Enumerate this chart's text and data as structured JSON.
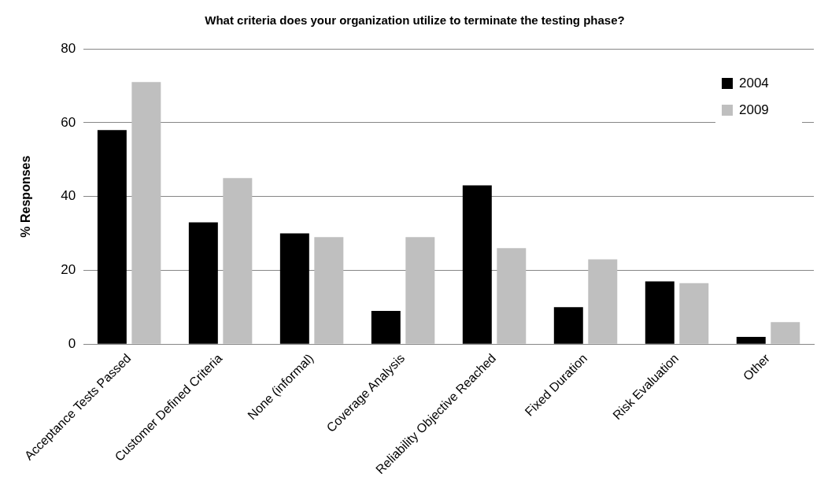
{
  "chart_data": {
    "type": "bar",
    "title": "What criteria does your organization utilize to terminate the testing phase?",
    "ylabel": "% Responses",
    "categories": [
      "Acceptance Tests Passed",
      "Customer Defined Criteria",
      "None (informal)",
      "Coverage Analysis",
      "Reliability Objective Reached",
      "Fixed Duration",
      "Risk Evaluation",
      "Other"
    ],
    "series": [
      {
        "name": "2004",
        "color": "#000000",
        "values": [
          58,
          33,
          30,
          9,
          43,
          10,
          17,
          2
        ]
      },
      {
        "name": "2009",
        "color": "#bfbfbf",
        "values": [
          71,
          45,
          29,
          29,
          26,
          23,
          16.5,
          6
        ]
      }
    ],
    "ylim": [
      0,
      80
    ],
    "yticks": [
      0,
      20,
      40,
      60,
      80
    ],
    "grid": "y",
    "legend": "top right"
  }
}
